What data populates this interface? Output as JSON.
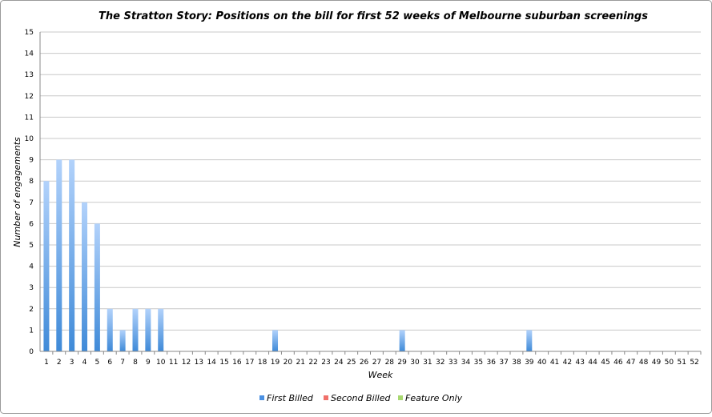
{
  "chart_data": {
    "type": "bar",
    "stacked": true,
    "title": "The Stratton Story: Positions on the bill for first 52 weeks of Melbourne suburban screenings",
    "xlabel": "Week",
    "ylabel": "Number of engagements",
    "ylim": [
      0,
      15
    ],
    "yticks": [
      0,
      1,
      2,
      3,
      4,
      5,
      6,
      7,
      8,
      9,
      10,
      11,
      12,
      13,
      14,
      15
    ],
    "grid": true,
    "legend_position": "bottom",
    "categories": [
      "1",
      "2",
      "3",
      "4",
      "5",
      "6",
      "7",
      "8",
      "9",
      "10",
      "11",
      "12",
      "13",
      "14",
      "15",
      "16",
      "17",
      "18",
      "19",
      "20",
      "21",
      "22",
      "23",
      "24",
      "25",
      "26",
      "27",
      "28",
      "29",
      "30",
      "31",
      "32",
      "33",
      "34",
      "35",
      "36",
      "37",
      "38",
      "39",
      "40",
      "41",
      "42",
      "43",
      "44",
      "45",
      "46",
      "47",
      "48",
      "49",
      "50",
      "51",
      "52"
    ],
    "series": [
      {
        "name": "First Billed",
        "color": "#4a90e2",
        "values": [
          8,
          9,
          9,
          7,
          6,
          2,
          1,
          2,
          2,
          2,
          0,
          0,
          0,
          0,
          0,
          0,
          0,
          0,
          1,
          0,
          0,
          0,
          0,
          0,
          0,
          0,
          0,
          0,
          1,
          0,
          0,
          0,
          0,
          0,
          0,
          0,
          0,
          0,
          1,
          0,
          0,
          0,
          0,
          0,
          0,
          0,
          0,
          0,
          0,
          0,
          0,
          0
        ]
      },
      {
        "name": "Second Billed",
        "color": "#f0706a",
        "values": [
          0,
          0,
          0,
          0,
          0,
          0,
          0,
          0,
          0,
          0,
          0,
          0,
          0,
          0,
          0,
          0,
          0,
          0,
          0,
          0,
          0,
          0,
          0,
          0,
          0,
          0,
          0,
          0,
          0,
          0,
          0,
          0,
          0,
          0,
          0,
          0,
          0,
          0,
          0,
          0,
          0,
          0,
          0,
          0,
          0,
          0,
          0,
          0,
          0,
          0,
          0,
          0
        ]
      },
      {
        "name": "Feature Only",
        "color": "#a8d870",
        "values": [
          0,
          0,
          0,
          0,
          0,
          0,
          0,
          0,
          0,
          0,
          0,
          0,
          0,
          0,
          0,
          0,
          0,
          0,
          0,
          0,
          0,
          0,
          0,
          0,
          0,
          0,
          0,
          0,
          0,
          0,
          0,
          0,
          0,
          0,
          0,
          0,
          0,
          0,
          0,
          0,
          0,
          0,
          0,
          0,
          0,
          0,
          0,
          0,
          0,
          0,
          0,
          0
        ]
      }
    ]
  }
}
